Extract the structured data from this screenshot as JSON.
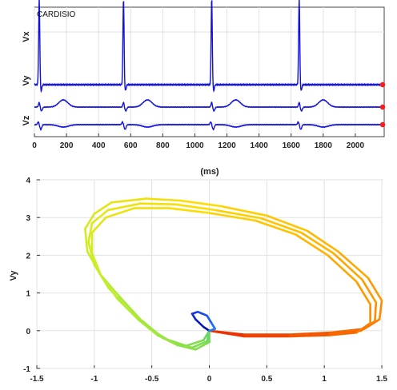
{
  "colors": {
    "ecg_trace": "#1010e0",
    "end_marker": "#ff1a1a",
    "grid": "#e2e2e2",
    "axis": "#333333"
  },
  "chart_data": [
    {
      "type": "line",
      "title": "CARDISIO",
      "xlabel": "(ms)",
      "ylabels": [
        "Vx",
        "Vy",
        "Vz"
      ],
      "xlim": [
        0,
        2180
      ],
      "xticks": [
        0,
        200,
        400,
        600,
        800,
        1000,
        1200,
        1400,
        1600,
        1800,
        2000
      ],
      "grid": true,
      "series": [
        {
          "lead": "Vx",
          "baseline": 0.0,
          "beats_ms": [
            30,
            555,
            1105,
            1650
          ],
          "p_wave_ms": 100,
          "t_wave_ms": 190,
          "r_peak": 4.2,
          "t_amp": 0.0,
          "s_amp": -0.3
        },
        {
          "lead": "Vy",
          "baseline": 0.0,
          "beats_ms": [
            30,
            555,
            1105,
            1650
          ],
          "t_amp": 0.75,
          "r_peak": 0.5,
          "s_amp": -0.4
        },
        {
          "lead": "Vz",
          "baseline": 0.0,
          "beats_ms": [
            30,
            555,
            1105,
            1650
          ],
          "t_amp": -0.25,
          "r_peak": 0.3,
          "s_amp": -0.5
        }
      ],
      "end_markers": 3
    },
    {
      "type": "line",
      "title": "",
      "xlabel": "",
      "ylabel": "Vy",
      "xlim": [
        -1.5,
        1.5
      ],
      "ylim": [
        -1,
        4
      ],
      "xticks": [
        -1.5,
        -1,
        -0.5,
        0,
        0.5,
        1,
        1.5
      ],
      "xtick_labels": [
        "-1.5",
        "-1",
        "-0.5",
        "0",
        "0.5",
        "1",
        "1.5"
      ],
      "yticks": [
        -1,
        0,
        1,
        2,
        3,
        4
      ],
      "grid": true,
      "colormap": "jet (time-coded loop)",
      "loops": [
        {
          "points": [
            [
              0.0,
              0.0
            ],
            [
              0.3,
              -0.1
            ],
            [
              0.7,
              -0.1
            ],
            [
              1.05,
              -0.05
            ],
            [
              1.35,
              0.05
            ],
            [
              1.48,
              0.3
            ],
            [
              1.5,
              0.8
            ],
            [
              1.38,
              1.4
            ],
            [
              1.12,
              2.1
            ],
            [
              0.85,
              2.65
            ],
            [
              0.5,
              3.05
            ],
            [
              0.1,
              3.3
            ],
            [
              -0.25,
              3.45
            ],
            [
              -0.55,
              3.5
            ],
            [
              -0.85,
              3.4
            ],
            [
              -1.0,
              3.1
            ],
            [
              -1.08,
              2.7
            ],
            [
              -1.06,
              2.1
            ],
            [
              -0.95,
              1.5
            ],
            [
              -0.78,
              0.9
            ],
            [
              -0.6,
              0.3
            ],
            [
              -0.4,
              -0.2
            ],
            [
              -0.2,
              -0.4
            ],
            [
              -0.05,
              -0.25
            ],
            [
              0.0,
              0.0
            ]
          ]
        },
        {
          "points": [
            [
              0.0,
              0.0
            ],
            [
              0.3,
              -0.12
            ],
            [
              0.7,
              -0.12
            ],
            [
              1.05,
              -0.08
            ],
            [
              1.32,
              0.0
            ],
            [
              1.44,
              0.25
            ],
            [
              1.45,
              0.75
            ],
            [
              1.33,
              1.35
            ],
            [
              1.08,
              2.05
            ],
            [
              0.8,
              2.6
            ],
            [
              0.45,
              2.98
            ],
            [
              0.05,
              3.2
            ],
            [
              -0.3,
              3.35
            ],
            [
              -0.6,
              3.37
            ],
            [
              -0.88,
              3.2
            ],
            [
              -1.02,
              2.85
            ],
            [
              -1.05,
              2.35
            ],
            [
              -1.0,
              1.75
            ],
            [
              -0.88,
              1.15
            ],
            [
              -0.7,
              0.55
            ],
            [
              -0.52,
              0.05
            ],
            [
              -0.33,
              -0.3
            ],
            [
              -0.15,
              -0.45
            ],
            [
              -0.02,
              -0.28
            ],
            [
              0.0,
              0.0
            ]
          ]
        },
        {
          "points": [
            [
              0.0,
              0.0
            ],
            [
              0.3,
              -0.15
            ],
            [
              0.7,
              -0.15
            ],
            [
              1.05,
              -0.12
            ],
            [
              1.28,
              -0.05
            ],
            [
              1.4,
              0.2
            ],
            [
              1.4,
              0.7
            ],
            [
              1.28,
              1.3
            ],
            [
              1.03,
              2.0
            ],
            [
              0.75,
              2.55
            ],
            [
              0.4,
              2.92
            ],
            [
              0.0,
              3.12
            ],
            [
              -0.35,
              3.25
            ],
            [
              -0.65,
              3.25
            ],
            [
              -0.9,
              3.0
            ],
            [
              -1.02,
              2.6
            ],
            [
              -1.02,
              2.05
            ],
            [
              -0.94,
              1.45
            ],
            [
              -0.8,
              0.85
            ],
            [
              -0.62,
              0.3
            ],
            [
              -0.45,
              -0.12
            ],
            [
              -0.28,
              -0.38
            ],
            [
              -0.12,
              -0.5
            ],
            [
              0.0,
              -0.3
            ],
            [
              0.0,
              0.0
            ]
          ]
        }
      ],
      "inner_loop": {
        "points": [
          [
            0.0,
            0.0
          ],
          [
            -0.05,
            0.1
          ],
          [
            -0.12,
            0.3
          ],
          [
            -0.15,
            0.45
          ],
          [
            -0.1,
            0.5
          ],
          [
            -0.02,
            0.4
          ],
          [
            0.02,
            0.2
          ],
          [
            0.05,
            0.05
          ],
          [
            0.0,
            0.0
          ]
        ]
      }
    }
  ]
}
